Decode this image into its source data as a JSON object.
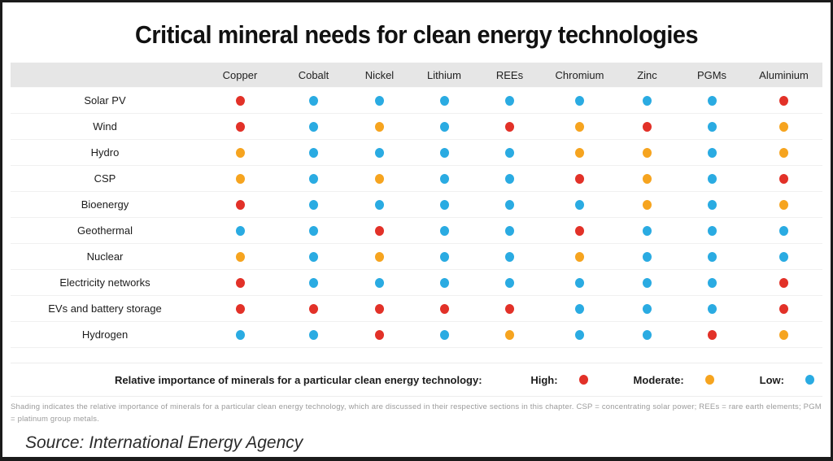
{
  "title": "Critical mineral needs for clean energy technologies",
  "colors": {
    "high": "#e23128",
    "moderate": "#f6a41f",
    "low": "#2aabe2"
  },
  "table": {
    "columns": [
      "Copper",
      "Cobalt",
      "Nickel",
      "Lithium",
      "REEs",
      "Chromium",
      "Zinc",
      "PGMs",
      "Aluminium"
    ],
    "rows": [
      {
        "label": "Solar PV",
        "values": [
          "high",
          "low",
          "low",
          "low",
          "low",
          "low",
          "low",
          "low",
          "high"
        ]
      },
      {
        "label": "Wind",
        "values": [
          "high",
          "low",
          "moderate",
          "low",
          "high",
          "moderate",
          "high",
          "low",
          "moderate"
        ]
      },
      {
        "label": "Hydro",
        "values": [
          "moderate",
          "low",
          "low",
          "low",
          "low",
          "moderate",
          "moderate",
          "low",
          "moderate"
        ]
      },
      {
        "label": "CSP",
        "values": [
          "moderate",
          "low",
          "moderate",
          "low",
          "low",
          "high",
          "moderate",
          "low",
          "high"
        ]
      },
      {
        "label": "Bioenergy",
        "values": [
          "high",
          "low",
          "low",
          "low",
          "low",
          "low",
          "moderate",
          "low",
          "moderate"
        ]
      },
      {
        "label": "Geothermal",
        "values": [
          "low",
          "low",
          "high",
          "low",
          "low",
          "high",
          "low",
          "low",
          "low"
        ]
      },
      {
        "label": "Nuclear",
        "values": [
          "moderate",
          "low",
          "moderate",
          "low",
          "low",
          "moderate",
          "low",
          "low",
          "low"
        ]
      },
      {
        "label": "Electricity networks",
        "values": [
          "high",
          "low",
          "low",
          "low",
          "low",
          "low",
          "low",
          "low",
          "high"
        ]
      },
      {
        "label": "EVs and battery storage",
        "values": [
          "high",
          "high",
          "high",
          "high",
          "high",
          "low",
          "low",
          "low",
          "high"
        ]
      },
      {
        "label": "Hydrogen",
        "values": [
          "low",
          "low",
          "high",
          "low",
          "moderate",
          "low",
          "low",
          "high",
          "moderate"
        ]
      }
    ]
  },
  "legend": {
    "caption": "Relative importance of minerals for a particular clean energy technology:",
    "items": [
      {
        "label": "High:",
        "level": "high"
      },
      {
        "label": "Moderate:",
        "level": "moderate"
      },
      {
        "label": "Low:",
        "level": "low"
      }
    ]
  },
  "footnote": "Shading indicates the relative importance of minerals for a particular clean energy technology, which are discussed in their respective sections in this chapter. CSP = concentrating solar power; REEs = rare earth elements; PGM = platinum group metals.",
  "source": "Source: International Energy Agency",
  "chart_data": {
    "type": "heatmap",
    "title": "Critical mineral needs for clean energy technologies",
    "x": [
      "Copper",
      "Cobalt",
      "Nickel",
      "Lithium",
      "REEs",
      "Chromium",
      "Zinc",
      "PGMs",
      "Aluminium"
    ],
    "y": [
      "Solar PV",
      "Wind",
      "Hydro",
      "CSP",
      "Bioenergy",
      "Geothermal",
      "Nuclear",
      "Electricity networks",
      "EVs and battery storage",
      "Hydrogen"
    ],
    "values": [
      [
        "high",
        "low",
        "low",
        "low",
        "low",
        "low",
        "low",
        "low",
        "high"
      ],
      [
        "high",
        "low",
        "moderate",
        "low",
        "high",
        "moderate",
        "high",
        "low",
        "moderate"
      ],
      [
        "moderate",
        "low",
        "low",
        "low",
        "low",
        "moderate",
        "moderate",
        "low",
        "moderate"
      ],
      [
        "moderate",
        "low",
        "moderate",
        "low",
        "low",
        "high",
        "moderate",
        "low",
        "high"
      ],
      [
        "high",
        "low",
        "low",
        "low",
        "low",
        "low",
        "moderate",
        "low",
        "moderate"
      ],
      [
        "low",
        "low",
        "high",
        "low",
        "low",
        "high",
        "low",
        "low",
        "low"
      ],
      [
        "moderate",
        "low",
        "moderate",
        "low",
        "low",
        "moderate",
        "low",
        "low",
        "low"
      ],
      [
        "high",
        "low",
        "low",
        "low",
        "low",
        "low",
        "low",
        "low",
        "high"
      ],
      [
        "high",
        "high",
        "high",
        "high",
        "high",
        "low",
        "low",
        "low",
        "high"
      ],
      [
        "low",
        "low",
        "high",
        "low",
        "moderate",
        "low",
        "low",
        "high",
        "moderate"
      ]
    ],
    "legend": {
      "high": "#e23128",
      "moderate": "#f6a41f",
      "low": "#2aabe2"
    },
    "legend_position": "bottom",
    "grid": false
  }
}
